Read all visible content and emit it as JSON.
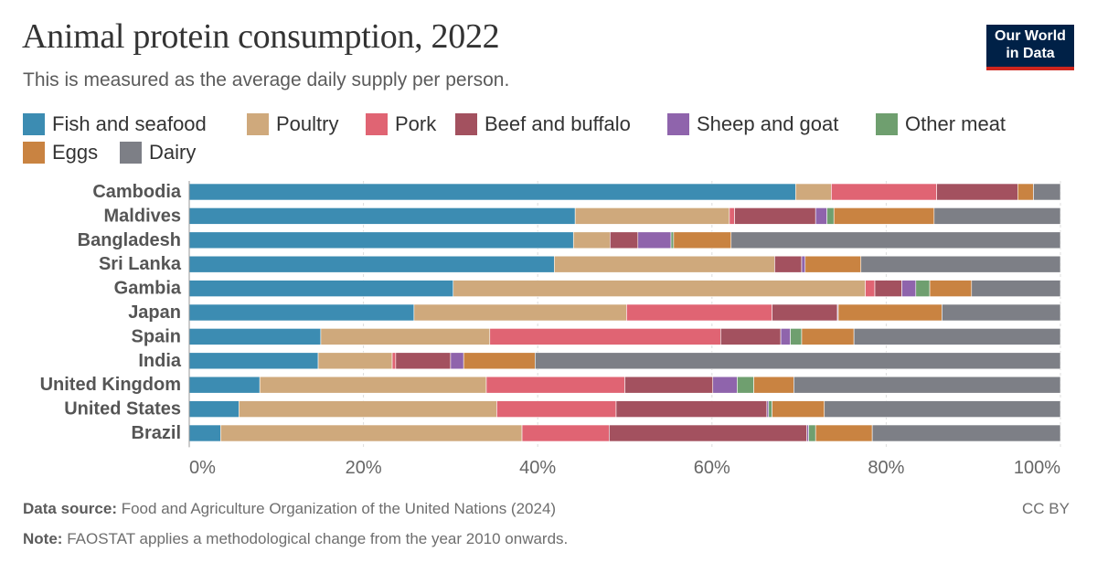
{
  "header": {
    "title": "Animal protein consumption, 2022",
    "subtitle": "This is measured as the average daily supply per person."
  },
  "logo": {
    "line1": "Our World",
    "line2": "in Data"
  },
  "footer": {
    "source_label": "Data source:",
    "source_text": "Food and Agriculture Organization of the United Nations (2024)",
    "note_label": "Note:",
    "note_text": "FAOSTAT applies a methodological change from the year 2010 onwards.",
    "license": "CC BY"
  },
  "chart_data": {
    "type": "bar",
    "orientation": "horizontal",
    "stacked": true,
    "categories": [
      "Cambodia",
      "Maldives",
      "Bangladesh",
      "Sri Lanka",
      "Gambia",
      "Japan",
      "Spain",
      "India",
      "United Kingdom",
      "United States",
      "Brazil"
    ],
    "xlim": [
      0,
      100
    ],
    "xticks": [
      "0%",
      "20%",
      "40%",
      "60%",
      "80%",
      "100%"
    ],
    "grid": "vertical dashed",
    "legend": "top",
    "series": [
      {
        "name": "Fish and seafood",
        "color": "#3c8cb2",
        "values": [
          69.6,
          44.3,
          44.1,
          41.9,
          30.3,
          25.8,
          15.1,
          14.8,
          8.1,
          5.7,
          3.6
        ]
      },
      {
        "name": "Poultry",
        "color": "#cfa97c",
        "values": [
          4.1,
          17.7,
          4.2,
          25.3,
          47.3,
          24.4,
          19.4,
          8.5,
          26.0,
          29.6,
          34.6
        ]
      },
      {
        "name": "Pork",
        "color": "#e06473",
        "values": [
          12.1,
          0.6,
          0,
          0,
          1.1,
          16.7,
          26.5,
          0.4,
          15.9,
          13.7,
          10.0
        ]
      },
      {
        "name": "Beef and buffalo",
        "color": "#a3515f",
        "values": [
          9.3,
          9.3,
          3.2,
          3.1,
          3.1,
          7.5,
          6.9,
          6.3,
          10.1,
          17.3,
          22.7
        ]
      },
      {
        "name": "Sheep and goat",
        "color": "#8f64ac",
        "values": [
          0,
          1.3,
          3.8,
          0.4,
          1.6,
          0.1,
          1.1,
          1.5,
          2.8,
          0.2,
          0.2
        ]
      },
      {
        "name": "Other meat",
        "color": "#6f9f6f",
        "values": [
          0,
          0.8,
          0.3,
          0,
          1.6,
          0,
          1.3,
          0,
          1.9,
          0.4,
          0.8
        ]
      },
      {
        "name": "Eggs",
        "color": "#c98341",
        "values": [
          1.8,
          11.5,
          6.6,
          6.4,
          4.8,
          11.9,
          6.0,
          8.2,
          4.6,
          6.0,
          6.5
        ]
      },
      {
        "name": "Dairy",
        "color": "#7d7f86",
        "values": [
          3.1,
          14.5,
          37.8,
          22.9,
          10.2,
          13.6,
          23.7,
          60.3,
          30.6,
          27.1,
          21.6
        ]
      }
    ]
  }
}
